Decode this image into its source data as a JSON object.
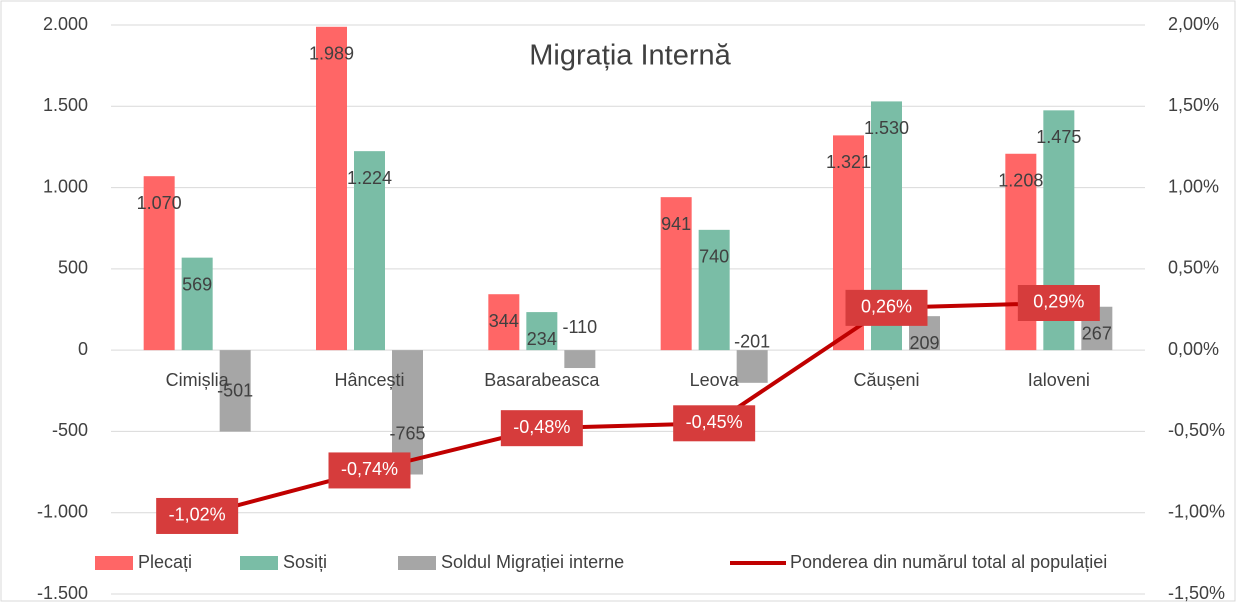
{
  "chart_data": {
    "type": "bar_line",
    "title": "Migrația Internă",
    "categories": [
      "Cimișlia",
      "Hâncești",
      "Basarabeasca",
      "Leova",
      "Căușeni",
      "Ialoveni"
    ],
    "series": [
      {
        "name": "Plecați",
        "color": "#ff6666",
        "type": "bar",
        "values": [
          1070,
          1989,
          344,
          941,
          1321,
          1208
        ],
        "value_labels": [
          "1.070",
          "1.989",
          "344",
          "941",
          "1.321",
          "1.208"
        ]
      },
      {
        "name": "Sosiți",
        "color": "#7abda6",
        "type": "bar",
        "values": [
          569,
          1224,
          234,
          740,
          1530,
          1475
        ],
        "value_labels": [
          "569",
          "1.224",
          "234",
          "740",
          "1.530",
          "1.475"
        ]
      },
      {
        "name": "Soldul Migrației interne",
        "color": "#a6a6a6",
        "type": "bar",
        "values": [
          -501,
          -765,
          -110,
          -201,
          209,
          267
        ],
        "value_labels": [
          "-501",
          "-765",
          "-110",
          "-201",
          "209",
          "267"
        ]
      },
      {
        "name": "Ponderea din numărul total al populației",
        "color": "#c00000",
        "type": "line",
        "axis": "y2",
        "values": [
          -1.02,
          -0.74,
          -0.48,
          -0.45,
          0.26,
          0.29
        ],
        "value_labels": [
          "-1,02%",
          "-0,74%",
          "-0,48%",
          "-0,45%",
          "0,26%",
          "0,29%"
        ]
      }
    ],
    "ylim": [
      -1500,
      2000
    ],
    "yticks": [
      {
        "value": -1500,
        "label": "-1.500"
      },
      {
        "value": -1000,
        "label": "-1.000"
      },
      -500,
      0,
      500,
      {
        "value": 1000,
        "label": "1.000"
      },
      {
        "value": 1500,
        "label": "1.500"
      },
      {
        "value": 2000,
        "label": "2.000"
      }
    ],
    "y2lim": [
      -1.5,
      2
    ],
    "y2ticks": [
      {
        "value": -1.5,
        "label": "-1,50%"
      },
      {
        "value": -1,
        "label": "-1,00%"
      },
      {
        "value": -0.5,
        "label": "-0,50%"
      },
      {
        "value": 0,
        "label": "0,00%"
      },
      {
        "value": 0.5,
        "label": "0,50%"
      },
      {
        "value": 1,
        "label": "1,00%"
      },
      {
        "value": 1.5,
        "label": "1,50%"
      },
      {
        "value": 2,
        "label": "2,00%"
      }
    ],
    "grid": true,
    "legend": "bottom"
  }
}
